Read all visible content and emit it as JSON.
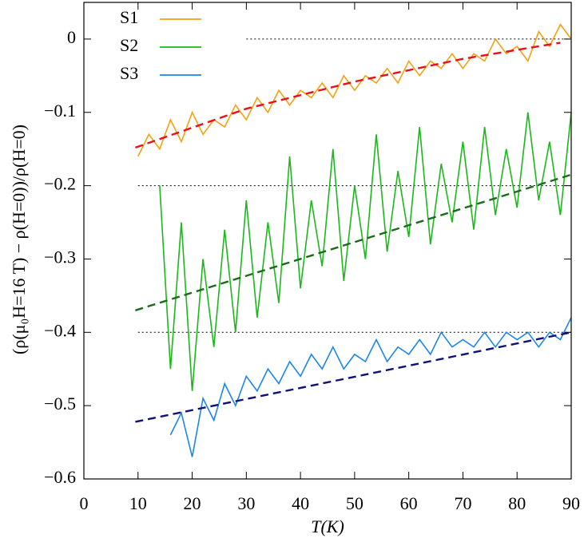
{
  "chart_data": {
    "type": "line",
    "xlabel": "T(K)",
    "ylabel": "(ρ(μ₀H=16 T) − ρ(H=0))/ρ(H=0)",
    "xlim": [
      0,
      90
    ],
    "ylim": [
      -0.6,
      0.05
    ],
    "xticks": [
      0,
      10,
      20,
      30,
      40,
      50,
      60,
      70,
      80,
      90
    ],
    "yticks": [
      {
        "value": 0,
        "label": "0"
      },
      {
        "value": -0.1,
        "label": "−0.1"
      },
      {
        "value": -0.2,
        "label": "−0.2"
      },
      {
        "value": -0.3,
        "label": "−0.3"
      },
      {
        "value": -0.4,
        "label": "−0.4"
      },
      {
        "value": -0.5,
        "label": "−0.5"
      },
      {
        "value": -0.6,
        "label": "−0.6"
      }
    ],
    "legend": "upper left",
    "series": [
      {
        "name": "S1",
        "color": "#f5a10f",
        "x": [
          10,
          12,
          14,
          16,
          18,
          20,
          22,
          24,
          26,
          28,
          30,
          32,
          34,
          36,
          38,
          40,
          42,
          44,
          46,
          48,
          50,
          52,
          54,
          56,
          58,
          60,
          62,
          64,
          66,
          68,
          70,
          72,
          74,
          76,
          78,
          80,
          82,
          84,
          86,
          88,
          90
        ],
        "values": [
          -0.16,
          -0.13,
          -0.15,
          -0.11,
          -0.14,
          -0.1,
          -0.13,
          -0.11,
          -0.12,
          -0.09,
          -0.11,
          -0.08,
          -0.1,
          -0.07,
          -0.09,
          -0.07,
          -0.08,
          -0.06,
          -0.08,
          -0.05,
          -0.07,
          -0.05,
          -0.06,
          -0.04,
          -0.06,
          -0.03,
          -0.05,
          -0.03,
          -0.04,
          -0.02,
          -0.04,
          -0.02,
          -0.03,
          0.0,
          -0.02,
          -0.01,
          -0.03,
          0.01,
          -0.01,
          0.02,
          0.0
        ]
      },
      {
        "name": "S2",
        "color": "#1ab81a",
        "x": [
          14,
          16,
          18,
          20,
          22,
          24,
          26,
          28,
          30,
          32,
          34,
          36,
          38,
          40,
          42,
          44,
          46,
          48,
          50,
          52,
          54,
          56,
          58,
          60,
          62,
          64,
          66,
          68,
          70,
          72,
          74,
          76,
          78,
          80,
          82,
          84,
          86,
          88,
          90
        ],
        "values": [
          -0.2,
          -0.45,
          -0.25,
          -0.48,
          -0.3,
          -0.42,
          -0.26,
          -0.4,
          -0.22,
          -0.38,
          -0.25,
          -0.36,
          -0.16,
          -0.34,
          -0.22,
          -0.31,
          -0.15,
          -0.33,
          -0.2,
          -0.3,
          -0.13,
          -0.29,
          -0.18,
          -0.27,
          -0.12,
          -0.28,
          -0.17,
          -0.25,
          -0.14,
          -0.26,
          -0.12,
          -0.24,
          -0.15,
          -0.23,
          -0.1,
          -0.22,
          -0.14,
          -0.24,
          -0.1
        ]
      },
      {
        "name": "S3",
        "color": "#1a86e8",
        "x": [
          16,
          18,
          20,
          22,
          24,
          26,
          28,
          30,
          32,
          34,
          36,
          38,
          40,
          42,
          44,
          46,
          48,
          50,
          52,
          54,
          56,
          58,
          60,
          62,
          64,
          66,
          68,
          70,
          72,
          74,
          76,
          78,
          80,
          82,
          84,
          86,
          88,
          90
        ],
        "values": [
          -0.54,
          -0.51,
          -0.57,
          -0.49,
          -0.52,
          -0.47,
          -0.5,
          -0.46,
          -0.48,
          -0.45,
          -0.47,
          -0.44,
          -0.46,
          -0.43,
          -0.45,
          -0.42,
          -0.45,
          -0.43,
          -0.44,
          -0.41,
          -0.44,
          -0.42,
          -0.43,
          -0.41,
          -0.43,
          -0.4,
          -0.42,
          -0.41,
          -0.42,
          -0.4,
          -0.42,
          -0.4,
          -0.41,
          -0.4,
          -0.42,
          -0.4,
          -0.41,
          -0.38
        ]
      }
    ],
    "fits": [
      {
        "color": "#e8101a",
        "x": [
          9.5,
          30,
          50,
          70,
          88
        ],
        "values": [
          -0.148,
          -0.095,
          -0.058,
          -0.027,
          -0.005
        ]
      },
      {
        "color": "#1a6b1a",
        "x": [
          9.5,
          90
        ],
        "values": [
          -0.37,
          -0.185
        ]
      },
      {
        "color": "#10107a",
        "x": [
          9.5,
          90
        ],
        "values": [
          -0.522,
          -0.4
        ]
      }
    ],
    "reference_lines": [
      {
        "y": 0,
        "x": [
          30,
          90
        ]
      },
      {
        "y": -0.2,
        "x": [
          10,
          90
        ]
      },
      {
        "y": -0.4,
        "x": [
          10,
          90
        ]
      }
    ]
  }
}
